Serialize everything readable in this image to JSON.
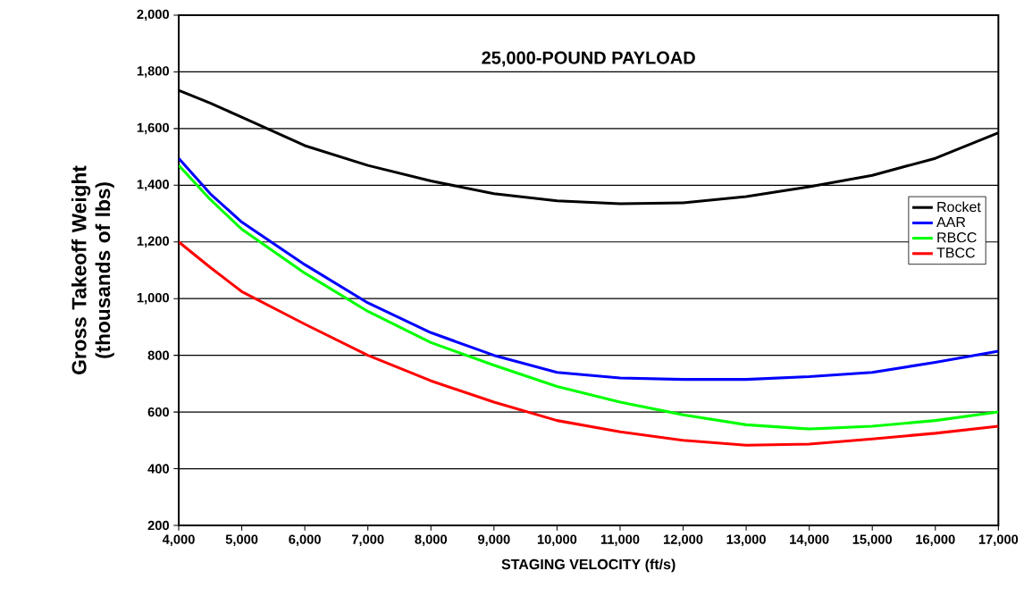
{
  "chart_data": {
    "type": "line",
    "title": "25,000-POUND PAYLOAD",
    "xlabel": "STAGING VELOCITY (ft/s)",
    "ylabel": "Gross Takeoff Weight (thousands of lbs)",
    "x": [
      4000,
      4500,
      5000,
      6000,
      7000,
      8000,
      9000,
      10000,
      11000,
      12000,
      13000,
      14000,
      15000,
      16000,
      17000
    ],
    "series": [
      {
        "name": "Rocket",
        "color": "#000000",
        "values": [
          1735,
          1690,
          1640,
          1540,
          1470,
          1415,
          1370,
          1345,
          1335,
          1338,
          1360,
          1395,
          1435,
          1495,
          1585
        ]
      },
      {
        "name": "AAR",
        "color": "#0000ff",
        "values": [
          1495,
          1370,
          1270,
          1120,
          985,
          880,
          800,
          740,
          720,
          715,
          715,
          725,
          740,
          775,
          815
        ]
      },
      {
        "name": "RBCC",
        "color": "#00ff00",
        "values": [
          1470,
          1350,
          1245,
          1090,
          955,
          845,
          765,
          690,
          635,
          590,
          555,
          540,
          550,
          570,
          600
        ]
      },
      {
        "name": "TBCC",
        "color": "#ff0000",
        "values": [
          1200,
          1110,
          1025,
          910,
          800,
          710,
          635,
          570,
          530,
          500,
          483,
          487,
          505,
          525,
          550
        ]
      }
    ],
    "xlim": [
      4000,
      17000
    ],
    "ylim": [
      200,
      2000
    ],
    "xticks": [
      {
        "value": 4000,
        "label": "4,000"
      },
      {
        "value": 5000,
        "label": "5,000"
      },
      {
        "value": 6000,
        "label": "6,000"
      },
      {
        "value": 7000,
        "label": "7,000"
      },
      {
        "value": 8000,
        "label": "8,000"
      },
      {
        "value": 9000,
        "label": "9,000"
      },
      {
        "value": 10000,
        "label": "10,000"
      },
      {
        "value": 11000,
        "label": "11,000"
      },
      {
        "value": 12000,
        "label": "12,000"
      },
      {
        "value": 13000,
        "label": "13,000"
      },
      {
        "value": 14000,
        "label": "14,000"
      },
      {
        "value": 15000,
        "label": "15,000"
      },
      {
        "value": 16000,
        "label": "16,000"
      },
      {
        "value": 17000,
        "label": "17,000"
      }
    ],
    "yticks": [
      {
        "value": 200,
        "label": "200"
      },
      {
        "value": 400,
        "label": "400"
      },
      {
        "value": 600,
        "label": "600"
      },
      {
        "value": 800,
        "label": "800"
      },
      {
        "value": 1000,
        "label": "1,000"
      },
      {
        "value": 1200,
        "label": "1,200"
      },
      {
        "value": 1400,
        "label": "1,400"
      },
      {
        "value": 1600,
        "label": "1,600"
      },
      {
        "value": 1800,
        "label": "1,800"
      },
      {
        "value": 2000,
        "label": "2,000"
      }
    ],
    "grid": "y",
    "legend": "right",
    "marker": "none",
    "line_style": "solid"
  }
}
